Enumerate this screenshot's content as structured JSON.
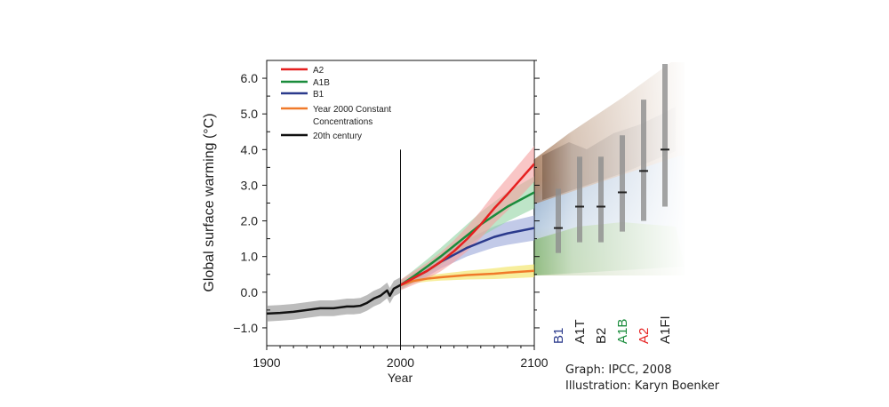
{
  "chart_data": {
    "type": "line",
    "title": "",
    "xlabel": "Year",
    "ylabel": "Global surface warming (°C)",
    "xlim": [
      1900,
      2100
    ],
    "ylim": [
      -1.5,
      6.5
    ],
    "x_ticks": [
      "1900",
      "2000",
      "2100"
    ],
    "y_ticks": [
      "−1.0",
      "0.0",
      "1.0",
      "2.0",
      "3.0",
      "4.0",
      "5.0",
      "6.0"
    ],
    "divider_year": 2000,
    "legend": {
      "placement": "top-left",
      "entries": [
        "A2",
        "A1B",
        "B1",
        "Year 2000 Constant",
        "Concentrations",
        "20th century"
      ]
    },
    "series": [
      {
        "name": "20th century",
        "color": "#111111",
        "band_color": "#8f8f8f",
        "x": [
          1900,
          1910,
          1920,
          1930,
          1940,
          1950,
          1960,
          1965,
          1970,
          1975,
          1980,
          1985,
          1990,
          1992,
          1995,
          2000
        ],
        "values": [
          -0.6,
          -0.58,
          -0.55,
          -0.5,
          -0.45,
          -0.45,
          -0.4,
          -0.4,
          -0.38,
          -0.3,
          -0.18,
          -0.1,
          0.05,
          -0.1,
          0.1,
          0.2
        ],
        "band": 0.22
      },
      {
        "name": "A2",
        "color": "#e62020",
        "band_color": "#f5a0a0",
        "x": [
          2000,
          2010,
          2020,
          2030,
          2040,
          2050,
          2060,
          2070,
          2080,
          2100
        ],
        "values": [
          0.2,
          0.4,
          0.6,
          0.85,
          1.15,
          1.5,
          1.9,
          2.35,
          2.75,
          3.6
        ],
        "band": 0.5
      },
      {
        "name": "A1B",
        "color": "#1a8c3c",
        "band_color": "#93d3a3",
        "x": [
          2000,
          2010,
          2020,
          2030,
          2040,
          2050,
          2060,
          2070,
          2080,
          2100
        ],
        "values": [
          0.2,
          0.45,
          0.72,
          1.0,
          1.3,
          1.6,
          1.9,
          2.15,
          2.4,
          2.8
        ],
        "band": 0.45
      },
      {
        "name": "B1",
        "color": "#2b3a8c",
        "band_color": "#9aa6d8",
        "x": [
          2000,
          2010,
          2020,
          2030,
          2040,
          2050,
          2060,
          2070,
          2080,
          2100
        ],
        "values": [
          0.2,
          0.4,
          0.6,
          0.85,
          1.05,
          1.25,
          1.4,
          1.55,
          1.65,
          1.8
        ],
        "band": 0.35
      },
      {
        "name": "Year 2000 Constant Concentrations",
        "color": "#f07a2a",
        "band_color": "#f2e35a",
        "x": [
          2000,
          2010,
          2020,
          2030,
          2040,
          2050,
          2060,
          2070,
          2080,
          2100
        ],
        "values": [
          0.2,
          0.32,
          0.38,
          0.42,
          0.45,
          0.48,
          0.5,
          0.52,
          0.55,
          0.6
        ],
        "band": 0.18
      }
    ],
    "scenario_bars": [
      {
        "name": "B1",
        "color": "#2b3a8c",
        "likely_range": [
          1.1,
          2.9
        ],
        "best": 1.8
      },
      {
        "name": "A1T",
        "color": "#222222",
        "likely_range": [
          1.4,
          3.8
        ],
        "best": 2.4
      },
      {
        "name": "B2",
        "color": "#222222",
        "likely_range": [
          1.4,
          3.8
        ],
        "best": 2.4
      },
      {
        "name": "A1B",
        "color": "#1a8c3c",
        "likely_range": [
          1.7,
          4.4
        ],
        "best": 2.8
      },
      {
        "name": "A2",
        "color": "#e62020",
        "likely_range": [
          2.0,
          5.4
        ],
        "best": 3.4
      },
      {
        "name": "A1FI",
        "color": "#222222",
        "likely_range": [
          2.4,
          6.4
        ],
        "best": 4.0
      }
    ]
  },
  "credits": {
    "graph": "Graph: IPCC, 2008",
    "illustration": "Illustration: Karyn Boenker"
  }
}
